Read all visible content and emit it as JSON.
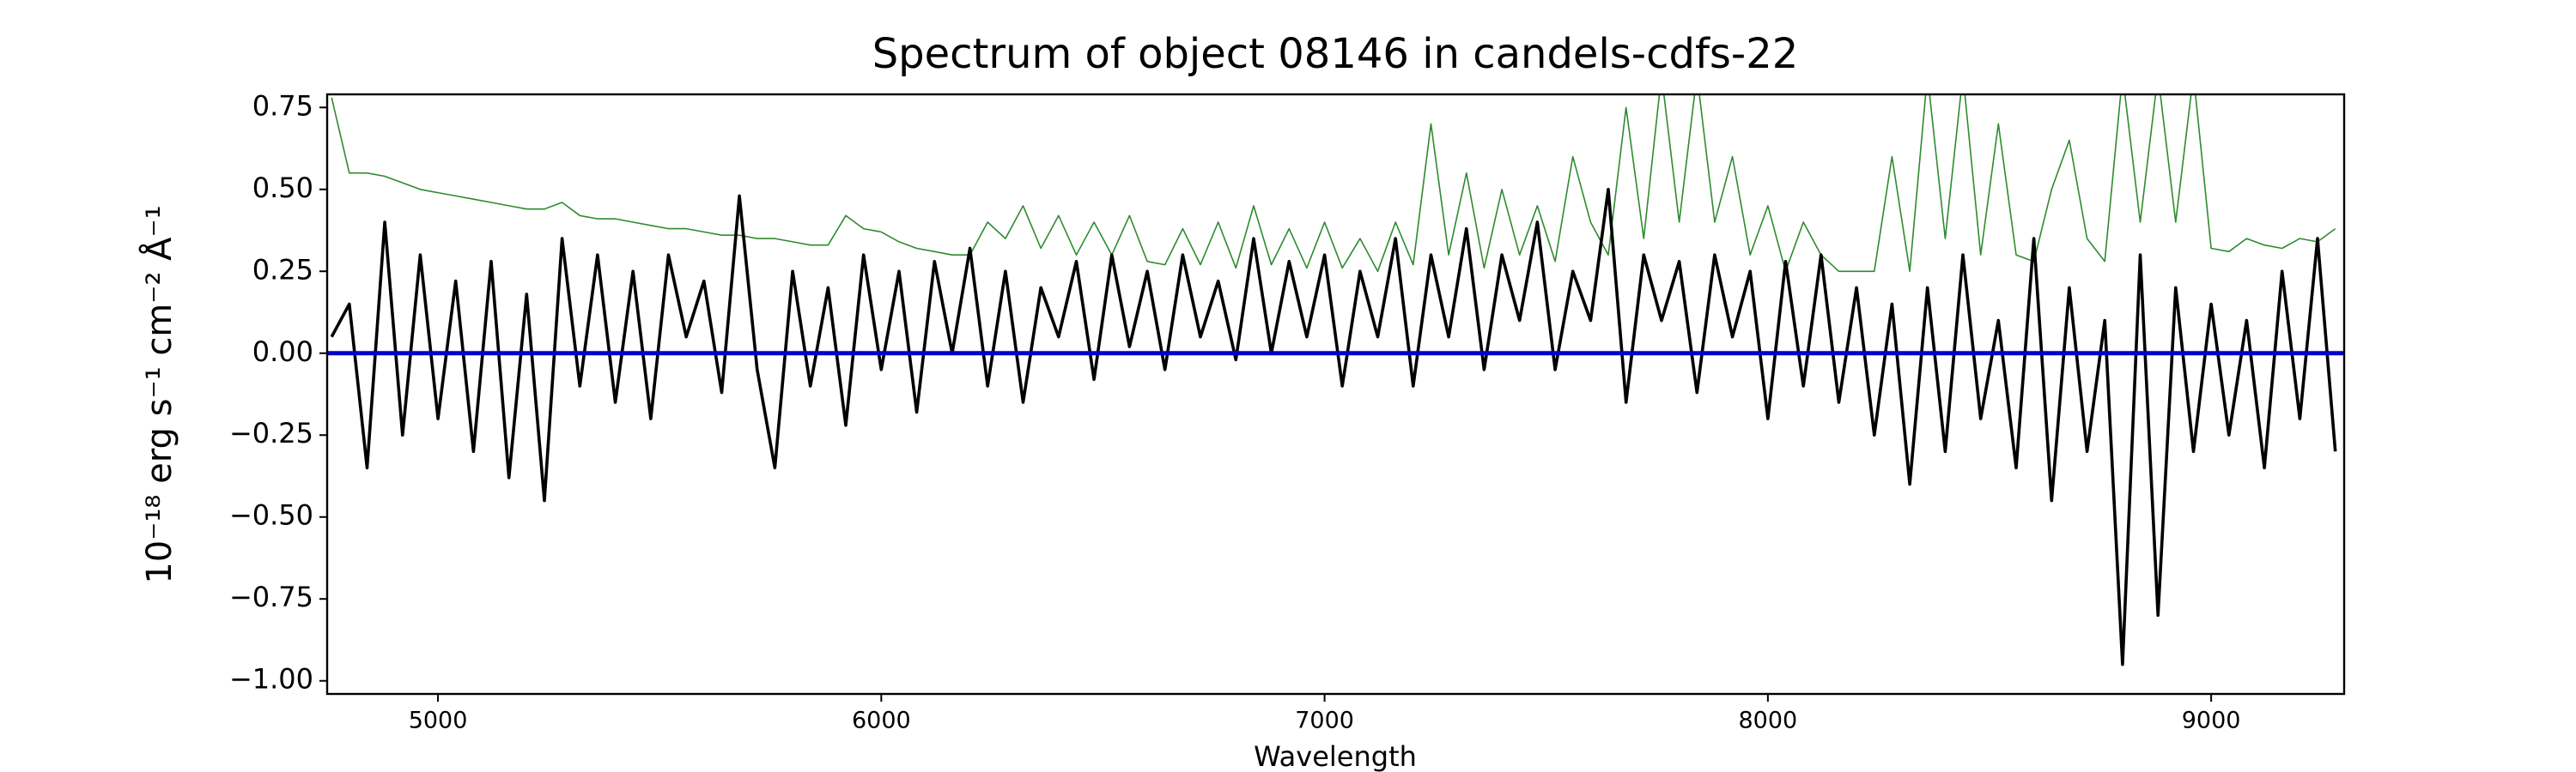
{
  "chart_data": {
    "type": "line",
    "title": "Spectrum of object 08146 in candels-cdfs-22",
    "xlabel": "Wavelength",
    "ylabel": "10⁻¹⁸ erg s⁻¹ cm⁻² Å⁻¹",
    "x": [
      4760,
      4800,
      4840,
      4880,
      4920,
      4960,
      5000,
      5040,
      5080,
      5120,
      5160,
      5200,
      5240,
      5280,
      5320,
      5360,
      5400,
      5440,
      5480,
      5520,
      5560,
      5600,
      5640,
      5680,
      5720,
      5760,
      5800,
      5840,
      5880,
      5920,
      5960,
      6000,
      6040,
      6080,
      6120,
      6160,
      6200,
      6240,
      6280,
      6320,
      6360,
      6400,
      6440,
      6480,
      6520,
      6560,
      6600,
      6640,
      6680,
      6720,
      6760,
      6800,
      6840,
      6880,
      6920,
      6960,
      7000,
      7040,
      7080,
      7120,
      7160,
      7200,
      7240,
      7280,
      7320,
      7360,
      7400,
      7440,
      7480,
      7520,
      7560,
      7600,
      7640,
      7680,
      7720,
      7760,
      7800,
      7840,
      7880,
      7920,
      7960,
      8000,
      8040,
      8080,
      8120,
      8160,
      8200,
      8240,
      8280,
      8320,
      8360,
      8400,
      8440,
      8480,
      8520,
      8560,
      8600,
      8640,
      8680,
      8720,
      8760,
      8800,
      8840,
      8880,
      8920,
      8960,
      9000,
      9040,
      9080,
      9120,
      9160,
      9200,
      9240,
      9280
    ],
    "series": [
      {
        "color": "#2e8b2e",
        "width": 1.6,
        "values": [
          0.78,
          0.55,
          0.55,
          0.54,
          0.52,
          0.5,
          0.49,
          0.48,
          0.47,
          0.46,
          0.45,
          0.44,
          0.44,
          0.46,
          0.42,
          0.41,
          0.41,
          0.4,
          0.39,
          0.38,
          0.38,
          0.37,
          0.36,
          0.36,
          0.35,
          0.35,
          0.34,
          0.33,
          0.33,
          0.42,
          0.38,
          0.37,
          0.34,
          0.32,
          0.31,
          0.3,
          0.3,
          0.4,
          0.35,
          0.45,
          0.32,
          0.42,
          0.3,
          0.4,
          0.3,
          0.42,
          0.28,
          0.27,
          0.38,
          0.27,
          0.4,
          0.26,
          0.45,
          0.27,
          0.38,
          0.26,
          0.4,
          0.26,
          0.35,
          0.25,
          0.4,
          0.27,
          0.7,
          0.3,
          0.55,
          0.26,
          0.5,
          0.3,
          0.45,
          0.28,
          0.6,
          0.4,
          0.3,
          0.75,
          0.35,
          0.85,
          0.4,
          0.85,
          0.4,
          0.6,
          0.3,
          0.45,
          0.25,
          0.4,
          0.3,
          0.25,
          0.25,
          0.25,
          0.6,
          0.25,
          0.85,
          0.35,
          0.85,
          0.3,
          0.7,
          0.3,
          0.28,
          0.5,
          0.65,
          0.35,
          0.28,
          0.85,
          0.4,
          0.85,
          0.4,
          0.85,
          0.32,
          0.31,
          0.35,
          0.33,
          0.32,
          0.35,
          0.34,
          0.38
        ]
      },
      {
        "color": "#000000",
        "width": 3.6,
        "values": [
          0.05,
          0.15,
          -0.35,
          0.4,
          -0.25,
          0.3,
          -0.2,
          0.22,
          -0.3,
          0.28,
          -0.38,
          0.18,
          -0.45,
          0.35,
          -0.1,
          0.3,
          -0.15,
          0.25,
          -0.2,
          0.3,
          0.05,
          0.22,
          -0.12,
          0.48,
          -0.05,
          -0.35,
          0.25,
          -0.1,
          0.2,
          -0.22,
          0.3,
          -0.05,
          0.25,
          -0.18,
          0.28,
          0.0,
          0.32,
          -0.1,
          0.25,
          -0.15,
          0.2,
          0.05,
          0.28,
          -0.08,
          0.3,
          0.02,
          0.25,
          -0.05,
          0.3,
          0.05,
          0.22,
          -0.02,
          0.35,
          0.0,
          0.28,
          0.05,
          0.3,
          -0.1,
          0.25,
          0.05,
          0.35,
          -0.1,
          0.3,
          0.05,
          0.38,
          -0.05,
          0.3,
          0.1,
          0.4,
          -0.05,
          0.25,
          0.1,
          0.5,
          -0.15,
          0.3,
          0.1,
          0.28,
          -0.12,
          0.3,
          0.05,
          0.25,
          -0.2,
          0.28,
          -0.1,
          0.3,
          -0.15,
          0.2,
          -0.25,
          0.15,
          -0.4,
          0.2,
          -0.3,
          0.3,
          -0.2,
          0.1,
          -0.35,
          0.35,
          -0.45,
          0.2,
          -0.3,
          0.1,
          -0.95,
          0.3,
          -0.8,
          0.2,
          -0.3,
          0.15,
          -0.25,
          0.1,
          -0.35,
          0.25,
          -0.2,
          0.35,
          -0.3
        ]
      }
    ],
    "hline": {
      "value": 0,
      "color": "#0000cc"
    },
    "xlim": [
      4750,
      9300
    ],
    "xticks": [
      5000,
      6000,
      7000,
      8000,
      9000
    ],
    "ylim": [
      -1.04,
      0.79
    ],
    "yticks": [
      {
        "value": -1,
        "label": "−1.00"
      },
      {
        "value": -0.75,
        "label": "−0.75"
      },
      {
        "value": -0.5,
        "label": "−0.50"
      },
      {
        "value": -0.25,
        "label": "−0.25"
      },
      {
        "value": 0,
        "label": "0.00"
      },
      {
        "value": 0.25,
        "label": "0.25"
      },
      {
        "value": 0.5,
        "label": "0.50"
      },
      {
        "value": 0.75,
        "label": "0.75"
      }
    ],
    "grid": false
  }
}
